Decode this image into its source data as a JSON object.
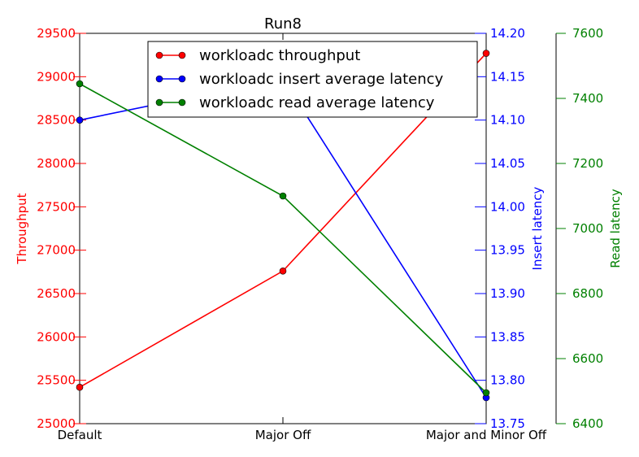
{
  "chart_data": {
    "type": "line",
    "title": "Run8",
    "categories": [
      "Default",
      "Major Off",
      "Major and Minor Off"
    ],
    "series": [
      {
        "name": "workloadc throughput",
        "axis": "left",
        "color": "#ff0000",
        "values": [
          25420,
          26760,
          29270
        ]
      },
      {
        "name": "workloadc insert average latency",
        "axis": "right_inner",
        "color": "#0000ff",
        "values": [
          14.1,
          14.148,
          13.78
        ]
      },
      {
        "name": "workloadc read average latency",
        "axis": "right_outer",
        "color": "#008000",
        "values": [
          7445,
          7100,
          6495
        ]
      }
    ],
    "axes": {
      "left": {
        "label": "Throughput",
        "color": "#ff0000",
        "ylim": [
          25000,
          29500
        ],
        "ticks": [
          "25000",
          "25500",
          "26000",
          "26500",
          "27000",
          "27500",
          "28000",
          "28500",
          "29000",
          "29500"
        ]
      },
      "right_inner": {
        "label": "Insert latency",
        "color": "#0000ff",
        "ylim": [
          13.75,
          14.2
        ],
        "ticks": [
          "13.75",
          "13.80",
          "13.85",
          "13.90",
          "13.95",
          "14.00",
          "14.05",
          "14.10",
          "14.15",
          "14.20"
        ]
      },
      "right_outer": {
        "label": "Read latency",
        "color": "#008000",
        "ylim": [
          6400,
          7600
        ],
        "ticks": [
          "6400",
          "6600",
          "6800",
          "7000",
          "7200",
          "7400",
          "7600"
        ]
      }
    },
    "legend_position": "top-center",
    "grid": false
  }
}
